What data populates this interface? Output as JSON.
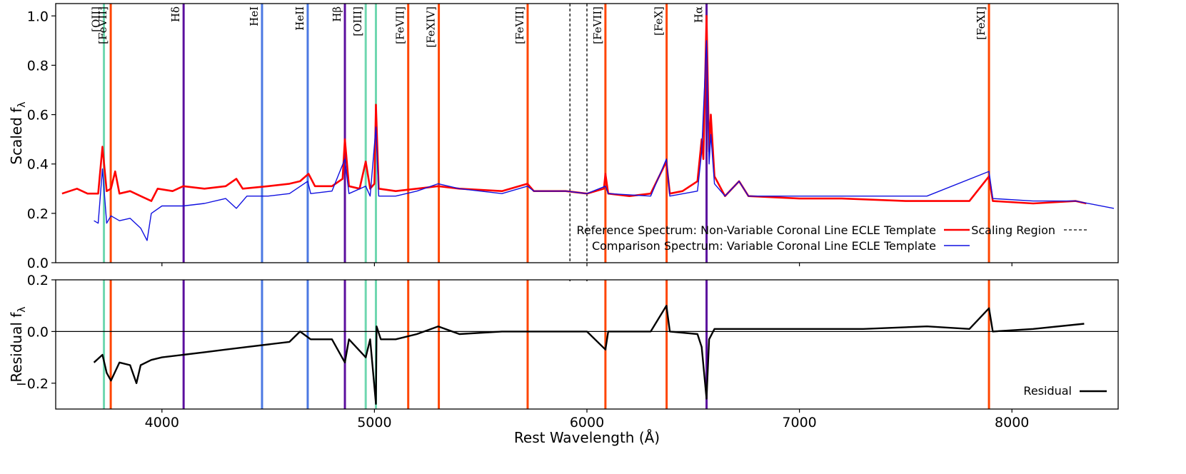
{
  "chart_data": {
    "type": "line",
    "x": {
      "label": "Rest Wavelength (Å)",
      "range": [
        3500,
        8500
      ],
      "ticks": [
        4000,
        5000,
        6000,
        7000,
        8000
      ]
    },
    "panels": [
      {
        "id": "top",
        "ylabel": "Scaled f",
        "ylabel_sub": "λ",
        "ylim": [
          0.0,
          1.05
        ],
        "yticks": [
          "0.0",
          "0.2",
          "0.4",
          "0.6",
          "0.8",
          "1.0"
        ],
        "series": [
          {
            "name": "Reference Spectrum: Non-Variable Coronal Line ECLE Template",
            "color": "#ff0000",
            "width": 2.6,
            "points": [
              [
                3530,
                0.28
              ],
              [
                3600,
                0.3
              ],
              [
                3650,
                0.28
              ],
              [
                3700,
                0.28
              ],
              [
                3720,
                0.47
              ],
              [
                3740,
                0.29
              ],
              [
                3760,
                0.3
              ],
              [
                3780,
                0.37
              ],
              [
                3800,
                0.28
              ],
              [
                3850,
                0.29
              ],
              [
                3900,
                0.27
              ],
              [
                3950,
                0.25
              ],
              [
                3980,
                0.3
              ],
              [
                4050,
                0.29
              ],
              [
                4100,
                0.31
              ],
              [
                4200,
                0.3
              ],
              [
                4300,
                0.31
              ],
              [
                4350,
                0.34
              ],
              [
                4380,
                0.3
              ],
              [
                4500,
                0.31
              ],
              [
                4600,
                0.32
              ],
              [
                4650,
                0.33
              ],
              [
                4690,
                0.36
              ],
              [
                4720,
                0.31
              ],
              [
                4800,
                0.31
              ],
              [
                4850,
                0.34
              ],
              [
                4861,
                0.5
              ],
              [
                4880,
                0.31
              ],
              [
                4930,
                0.3
              ],
              [
                4959,
                0.41
              ],
              [
                4980,
                0.3
              ],
              [
                5000,
                0.32
              ],
              [
                5007,
                0.64
              ],
              [
                5020,
                0.3
              ],
              [
                5100,
                0.29
              ],
              [
                5200,
                0.3
              ],
              [
                5300,
                0.31
              ],
              [
                5400,
                0.3
              ],
              [
                5600,
                0.29
              ],
              [
                5720,
                0.32
              ],
              [
                5750,
                0.29
              ],
              [
                5900,
                0.29
              ],
              [
                6000,
                0.28
              ],
              [
                6080,
                0.3
              ],
              [
                6087,
                0.36
              ],
              [
                6100,
                0.28
              ],
              [
                6200,
                0.27
              ],
              [
                6300,
                0.28
              ],
              [
                6374,
                0.41
              ],
              [
                6390,
                0.28
              ],
              [
                6450,
                0.29
              ],
              [
                6520,
                0.33
              ],
              [
                6540,
                0.5
              ],
              [
                6548,
                0.42
              ],
              [
                6563,
                1.0
              ],
              [
                6575,
                0.45
              ],
              [
                6583,
                0.6
              ],
              [
                6600,
                0.35
              ],
              [
                6650,
                0.27
              ],
              [
                6716,
                0.33
              ],
              [
                6731,
                0.31
              ],
              [
                6760,
                0.27
              ],
              [
                7000,
                0.26
              ],
              [
                7200,
                0.26
              ],
              [
                7500,
                0.25
              ],
              [
                7800,
                0.25
              ],
              [
                7892,
                0.35
              ],
              [
                7910,
                0.25
              ],
              [
                8100,
                0.24
              ],
              [
                8300,
                0.25
              ],
              [
                8350,
                0.24
              ]
            ]
          },
          {
            "name": "Comparison Spectrum: Variable Coronal Line ECLE Template",
            "color": "#1010e0",
            "width": 1.4,
            "points": [
              [
                3680,
                0.17
              ],
              [
                3700,
                0.16
              ],
              [
                3720,
                0.38
              ],
              [
                3740,
                0.16
              ],
              [
                3760,
                0.19
              ],
              [
                3800,
                0.17
              ],
              [
                3850,
                0.18
              ],
              [
                3900,
                0.14
              ],
              [
                3930,
                0.09
              ],
              [
                3950,
                0.2
              ],
              [
                4000,
                0.23
              ],
              [
                4100,
                0.23
              ],
              [
                4200,
                0.24
              ],
              [
                4300,
                0.26
              ],
              [
                4350,
                0.22
              ],
              [
                4400,
                0.27
              ],
              [
                4500,
                0.27
              ],
              [
                4600,
                0.28
              ],
              [
                4686,
                0.33
              ],
              [
                4700,
                0.28
              ],
              [
                4800,
                0.29
              ],
              [
                4861,
                0.42
              ],
              [
                4880,
                0.28
              ],
              [
                4959,
                0.31
              ],
              [
                4980,
                0.27
              ],
              [
                5007,
                0.55
              ],
              [
                5020,
                0.27
              ],
              [
                5100,
                0.27
              ],
              [
                5200,
                0.29
              ],
              [
                5300,
                0.32
              ],
              [
                5400,
                0.3
              ],
              [
                5600,
                0.28
              ],
              [
                5720,
                0.31
              ],
              [
                5750,
                0.29
              ],
              [
                5900,
                0.29
              ],
              [
                6000,
                0.28
              ],
              [
                6087,
                0.31
              ],
              [
                6100,
                0.28
              ],
              [
                6300,
                0.27
              ],
              [
                6374,
                0.42
              ],
              [
                6390,
                0.27
              ],
              [
                6520,
                0.29
              ],
              [
                6540,
                0.45
              ],
              [
                6563,
                0.9
              ],
              [
                6575,
                0.4
              ],
              [
                6583,
                0.52
              ],
              [
                6600,
                0.32
              ],
              [
                6650,
                0.27
              ],
              [
                6716,
                0.33
              ],
              [
                6760,
                0.27
              ],
              [
                7000,
                0.27
              ],
              [
                7300,
                0.27
              ],
              [
                7600,
                0.27
              ],
              [
                7892,
                0.37
              ],
              [
                7910,
                0.26
              ],
              [
                8100,
                0.25
              ],
              [
                8300,
                0.25
              ],
              [
                8480,
                0.22
              ]
            ]
          }
        ],
        "legend": {
          "placement": "lower-right",
          "items": [
            {
              "label": "Reference Spectrum: Non-Variable Coronal Line ECLE Template",
              "color": "#ff0000",
              "style": "solid"
            },
            {
              "label": "Comparison Spectrum: Variable Coronal Line ECLE Template",
              "color": "#1010e0",
              "style": "solid"
            },
            {
              "label": "Scaling Region",
              "color": "#000000",
              "style": "dashed"
            }
          ]
        }
      },
      {
        "id": "bottom",
        "ylabel": "Residual f",
        "ylabel_sub": "λ",
        "ylim": [
          -0.3,
          0.2
        ],
        "yticks": [
          "−0.2",
          "0.0",
          "0.2"
        ],
        "ytick_values": [
          -0.2,
          0.0,
          0.2
        ],
        "series": [
          {
            "name": "Residual",
            "color": "#000000",
            "width": 2.4,
            "points": [
              [
                3680,
                -0.12
              ],
              [
                3720,
                -0.09
              ],
              [
                3740,
                -0.16
              ],
              [
                3760,
                -0.19
              ],
              [
                3800,
                -0.12
              ],
              [
                3850,
                -0.13
              ],
              [
                3880,
                -0.2
              ],
              [
                3900,
                -0.13
              ],
              [
                3950,
                -0.11
              ],
              [
                4000,
                -0.1
              ],
              [
                4100,
                -0.09
              ],
              [
                4200,
                -0.08
              ],
              [
                4300,
                -0.07
              ],
              [
                4400,
                -0.06
              ],
              [
                4500,
                -0.05
              ],
              [
                4600,
                -0.04
              ],
              [
                4650,
                0.0
              ],
              [
                4700,
                -0.03
              ],
              [
                4800,
                -0.03
              ],
              [
                4861,
                -0.12
              ],
              [
                4880,
                -0.03
              ],
              [
                4959,
                -0.1
              ],
              [
                4980,
                -0.03
              ],
              [
                5007,
                -0.28
              ],
              [
                5010,
                0.02
              ],
              [
                5030,
                -0.03
              ],
              [
                5100,
                -0.03
              ],
              [
                5200,
                -0.01
              ],
              [
                5300,
                0.02
              ],
              [
                5400,
                -0.01
              ],
              [
                5600,
                0.0
              ],
              [
                5720,
                0.0
              ],
              [
                5900,
                0.0
              ],
              [
                6000,
                0.0
              ],
              [
                6087,
                -0.07
              ],
              [
                6100,
                0.0
              ],
              [
                6300,
                0.0
              ],
              [
                6374,
                0.1
              ],
              [
                6390,
                0.0
              ],
              [
                6520,
                -0.01
              ],
              [
                6540,
                -0.06
              ],
              [
                6563,
                -0.26
              ],
              [
                6575,
                -0.03
              ],
              [
                6600,
                0.01
              ],
              [
                6700,
                0.01
              ],
              [
                7000,
                0.01
              ],
              [
                7300,
                0.01
              ],
              [
                7600,
                0.02
              ],
              [
                7800,
                0.01
              ],
              [
                7892,
                0.09
              ],
              [
                7910,
                0.0
              ],
              [
                8100,
                0.01
              ],
              [
                8340,
                0.03
              ]
            ]
          }
        ],
        "hline": 0.0,
        "legend": {
          "placement": "lower-right",
          "items": [
            {
              "label": "Residual",
              "color": "#000000",
              "style": "solid"
            }
          ]
        }
      }
    ],
    "vertical_lines": [
      {
        "wavelength": 3727,
        "color": "#6fd7b0",
        "label": "[OII]"
      },
      {
        "wavelength": 3759,
        "color": "#ff4500",
        "label": "[FeVII]"
      },
      {
        "wavelength": 4102,
        "color": "#5b0f9e",
        "label": "Hδ"
      },
      {
        "wavelength": 4471,
        "color": "#4b78e3",
        "label": "HeI"
      },
      {
        "wavelength": 4686,
        "color": "#4b78e3",
        "label": "HeII"
      },
      {
        "wavelength": 4861,
        "color": "#5b0f9e",
        "label": "Hβ"
      },
      {
        "wavelength": 4959,
        "color": "#6fd7b0",
        "label": "[OIII]"
      },
      {
        "wavelength": 5007,
        "color": "#6fd7b0",
        "label": ""
      },
      {
        "wavelength": 5159,
        "color": "#ff4500",
        "label": "[FeVII]"
      },
      {
        "wavelength": 5303,
        "color": "#ff4500",
        "label": "[FeXIV]"
      },
      {
        "wavelength": 5721,
        "color": "#ff4500",
        "label": "[FeVII]"
      },
      {
        "wavelength": 6087,
        "color": "#ff4500",
        "label": "[FeVII]"
      },
      {
        "wavelength": 6375,
        "color": "#ff4500",
        "label": "[FeX]"
      },
      {
        "wavelength": 6563,
        "color": "#5b0f9e",
        "label": "Hα"
      },
      {
        "wavelength": 7892,
        "color": "#ff4500",
        "label": "[FeXI]"
      }
    ],
    "scaling_region": [
      5920,
      6000
    ]
  }
}
